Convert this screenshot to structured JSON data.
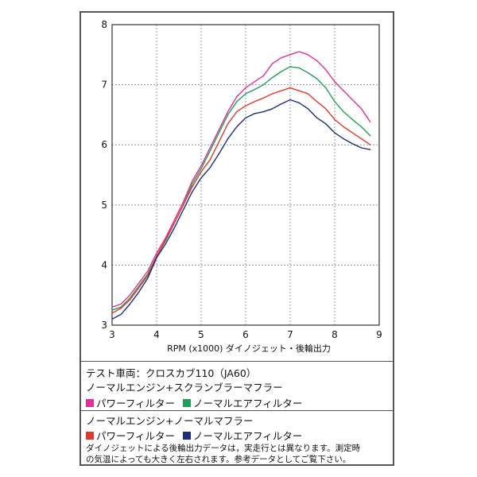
{
  "chart_data": {
    "type": "line",
    "xlabel": "RPM (x1000) ダイノジェット・後輪出力",
    "ylabel": "",
    "xlim": [
      3,
      9
    ],
    "ylim": [
      3,
      8
    ],
    "x_ticks": [
      "3",
      "4",
      "5",
      "6",
      "7",
      "8",
      "9"
    ],
    "y_ticks": [
      "3",
      "4",
      "5",
      "6",
      "7",
      "8"
    ],
    "grid": true,
    "series": [
      {
        "name": "スクランブラーマフラー パワーフィルター",
        "color": "#e0309a",
        "x": [
          3.0,
          3.2,
          3.4,
          3.6,
          3.8,
          4.0,
          4.2,
          4.4,
          4.6,
          4.8,
          5.0,
          5.2,
          5.4,
          5.6,
          5.8,
          6.0,
          6.2,
          6.4,
          6.6,
          6.8,
          7.0,
          7.2,
          7.4,
          7.6,
          7.8,
          8.0,
          8.2,
          8.4,
          8.6,
          8.8
        ],
        "y": [
          3.3,
          3.35,
          3.5,
          3.7,
          3.9,
          4.2,
          4.45,
          4.75,
          5.05,
          5.4,
          5.65,
          5.95,
          6.25,
          6.55,
          6.8,
          6.95,
          7.05,
          7.15,
          7.35,
          7.45,
          7.5,
          7.55,
          7.5,
          7.4,
          7.25,
          7.05,
          6.9,
          6.75,
          6.6,
          6.38
        ]
      },
      {
        "name": "スクランブラーマフラー ノーマルエアフィルター",
        "color": "#1ea05a",
        "x": [
          3.0,
          3.2,
          3.4,
          3.6,
          3.8,
          4.0,
          4.2,
          4.4,
          4.6,
          4.8,
          5.0,
          5.2,
          5.4,
          5.6,
          5.8,
          6.0,
          6.2,
          6.4,
          6.6,
          6.8,
          7.0,
          7.2,
          7.4,
          7.6,
          7.8,
          8.0,
          8.2,
          8.4,
          8.6,
          8.8
        ],
        "y": [
          3.25,
          3.3,
          3.45,
          3.65,
          3.85,
          4.15,
          4.4,
          4.7,
          5.0,
          5.35,
          5.6,
          5.9,
          6.2,
          6.5,
          6.72,
          6.85,
          6.92,
          7.0,
          7.12,
          7.22,
          7.3,
          7.28,
          7.2,
          7.1,
          6.95,
          6.72,
          6.55,
          6.42,
          6.3,
          6.15
        ]
      },
      {
        "name": "ノーマルマフラー パワーフィルター",
        "color": "#e03a2a",
        "x": [
          3.0,
          3.2,
          3.4,
          3.6,
          3.8,
          4.0,
          4.2,
          4.4,
          4.6,
          4.8,
          5.0,
          5.2,
          5.4,
          5.6,
          5.8,
          6.0,
          6.2,
          6.4,
          6.6,
          6.8,
          7.0,
          7.2,
          7.4,
          7.6,
          7.8,
          8.0,
          8.2,
          8.4,
          8.6,
          8.8
        ],
        "y": [
          3.2,
          3.28,
          3.42,
          3.62,
          3.82,
          4.15,
          4.42,
          4.7,
          5.0,
          5.3,
          5.55,
          5.75,
          6.05,
          6.35,
          6.55,
          6.65,
          6.72,
          6.78,
          6.85,
          6.9,
          6.95,
          6.9,
          6.85,
          6.72,
          6.6,
          6.42,
          6.3,
          6.2,
          6.1,
          6.0
        ]
      },
      {
        "name": "ノーマルマフラー ノーマルエアフィルター",
        "color": "#1e2f7a",
        "x": [
          3.0,
          3.2,
          3.4,
          3.6,
          3.8,
          4.0,
          4.2,
          4.4,
          4.6,
          4.8,
          5.0,
          5.2,
          5.4,
          5.6,
          5.8,
          6.0,
          6.2,
          6.4,
          6.6,
          6.8,
          7.0,
          7.2,
          7.4,
          7.6,
          7.8,
          8.0,
          8.2,
          8.4,
          8.6,
          8.8
        ],
        "y": [
          3.1,
          3.18,
          3.35,
          3.55,
          3.78,
          4.12,
          4.35,
          4.62,
          4.92,
          5.22,
          5.45,
          5.62,
          5.85,
          6.1,
          6.3,
          6.45,
          6.52,
          6.55,
          6.6,
          6.68,
          6.75,
          6.7,
          6.6,
          6.45,
          6.35,
          6.2,
          6.1,
          6.02,
          5.95,
          5.92
        ]
      }
    ]
  },
  "info": {
    "line1": "テスト車両：クロスカブ110（JA60）",
    "line2": "ノーマルエンジン+スクランブラーマフラー",
    "group1": [
      {
        "label": "パワーフィルター",
        "color": "#e0309a"
      },
      {
        "label": "ノーマルエアフィルター",
        "color": "#1ea05a"
      }
    ],
    "line3": "ノーマルエンジン+ノーマルマフラー",
    "group2": [
      {
        "label": "パワーフィルター",
        "color": "#e03a2a"
      },
      {
        "label": "ノーマルエアフィルター",
        "color": "#1e2f7a"
      }
    ],
    "note1": "ダイノジェットによる後輪出力データは，実走行とは異なります。測定時",
    "note2": "の気温によっても大きく左右されます。参考データとしてご覧下さい。"
  }
}
